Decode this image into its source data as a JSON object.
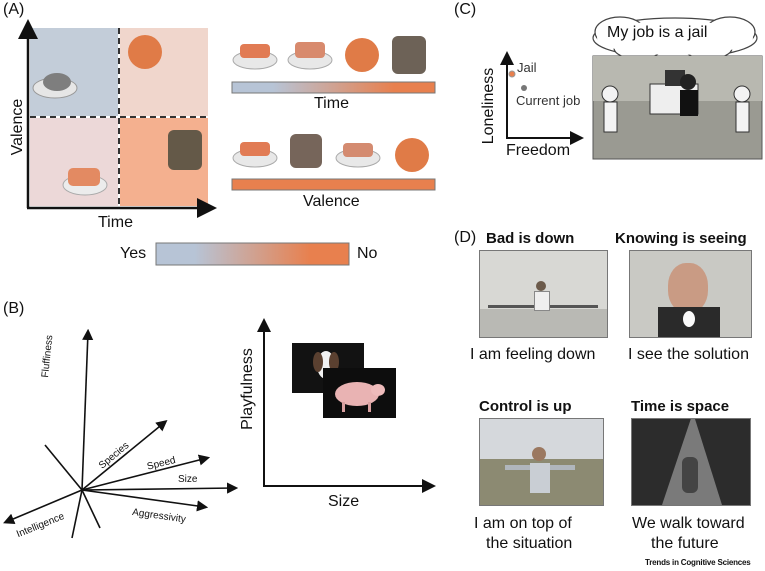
{
  "panels": {
    "a": "(A)",
    "b": "(B)",
    "c": "(C)",
    "d": "(D)"
  },
  "panel_a": {
    "y_axis": "Valence",
    "x_axis": "Time",
    "bar_time_label": "Time",
    "bar_valence_label": "Valence",
    "legend_yes": "Yes",
    "legend_no": "No",
    "colors": {
      "yes": "#b7c4d6",
      "no": "#e8804e",
      "quad_low": "#c3cdd9",
      "quad_high": "#f4b08f"
    }
  },
  "panel_b": {
    "axes": [
      "Fluffiness",
      "Species",
      "Speed",
      "Size",
      "Aggressivity",
      "Intelligence"
    ],
    "plot_y": "Playfulness",
    "plot_x": "Size"
  },
  "panel_c": {
    "speech": "My job is a jail",
    "y_axis": "Loneliness",
    "x_axis": "Freedom",
    "point_jail": "Jail",
    "point_current": "Current job"
  },
  "panel_d": {
    "items": [
      {
        "title": "Bad is down",
        "caption": "I am feeling down"
      },
      {
        "title": "Knowing is seeing",
        "caption": "I see the solution"
      },
      {
        "title": "Control is up",
        "caption": "I am on top of the situation",
        "caption_lines": [
          "I am on top of",
          "the situation"
        ]
      },
      {
        "title": "Time is space",
        "caption": "We walk toward the future",
        "caption_lines": [
          "We walk toward",
          "the future"
        ]
      }
    ]
  },
  "credit": "Trends in Cognitive Sciences"
}
